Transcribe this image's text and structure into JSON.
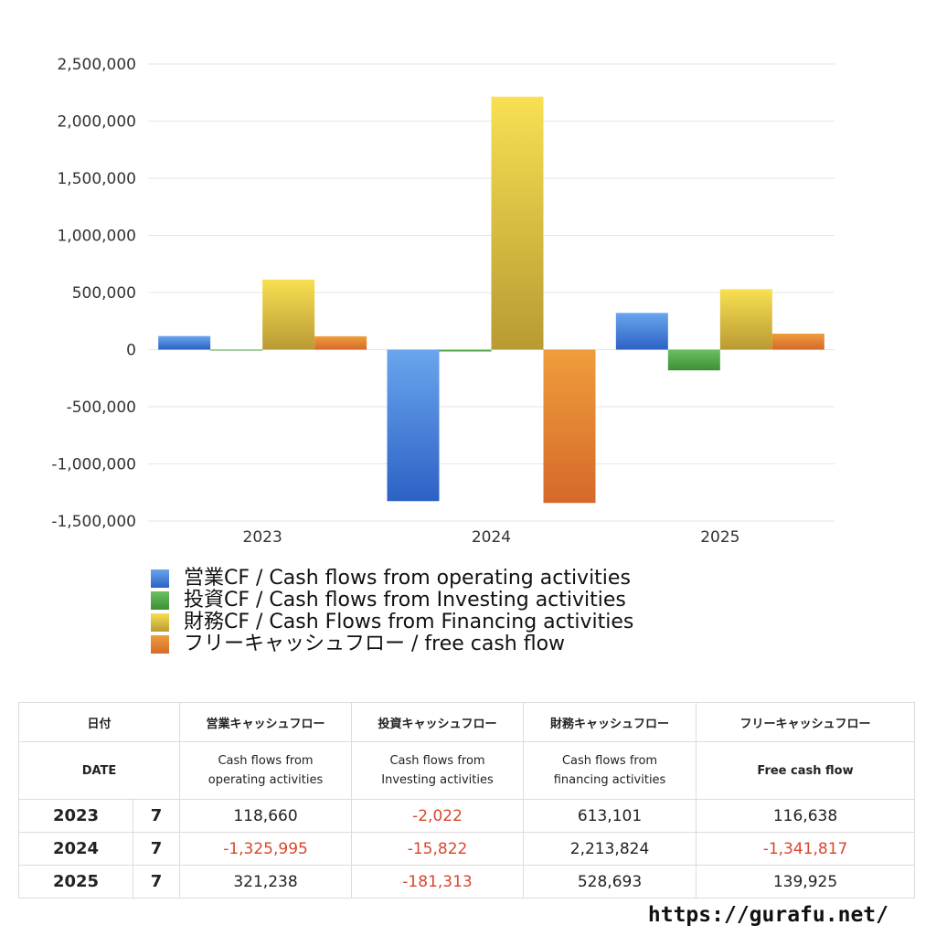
{
  "chart_data": {
    "type": "bar",
    "categories": [
      "2023",
      "2024",
      "2025"
    ],
    "series": [
      {
        "name": "営業CF / Cash flows from operating activities",
        "values": [
          118660,
          -1325995,
          321238
        ],
        "color_top": "#6aa5ee",
        "color_bottom": "#2c62c4"
      },
      {
        "name": "投資CF / Cash flows from Investing activities",
        "values": [
          -2022,
          -15822,
          -181313
        ],
        "color_top": "#6cc064",
        "color_bottom": "#3d8f34"
      },
      {
        "name": "財務CF / Cash Flows from Financing activities",
        "values": [
          613101,
          2213824,
          528693
        ],
        "color_top": "#f8e052",
        "color_bottom": "#b99a33"
      },
      {
        "name": "フリーキャッシュフロー / free cash flow",
        "values": [
          116638,
          -1341817,
          139925
        ],
        "color_top": "#ee9d3c",
        "color_bottom": "#d6692a"
      }
    ],
    "ylim": [
      -1500000,
      2500000
    ],
    "yticks": [
      2500000,
      2000000,
      1500000,
      1000000,
      500000,
      0,
      -500000,
      -1000000,
      -1500000
    ],
    "ytick_labels": [
      "2,500,000",
      "2,000,000",
      "1,500,000",
      "1,000,000",
      "500,000",
      "0",
      "-500,000",
      "-1,000,000",
      "-1,500,000"
    ],
    "grid": true,
    "legend_position": "bottom-left"
  },
  "table": {
    "header_jp": [
      "日付",
      "営業キャッシュフロー",
      "投資キャッシュフロー",
      "財務キャッシュフロー",
      "フリーキャッシュフロー"
    ],
    "header_en": [
      [
        "DATE"
      ],
      [
        "Cash flows from",
        "operating activities"
      ],
      [
        "Cash flows from",
        "Investing activities"
      ],
      [
        "Cash flows from",
        "financing activities"
      ],
      [
        "Free cash flow"
      ]
    ],
    "rows": [
      {
        "year": "2023",
        "month": "7",
        "values": [
          "118,660",
          "-2,022",
          "613,101",
          "116,638"
        ]
      },
      {
        "year": "2024",
        "month": "7",
        "values": [
          "-1,325,995",
          "-15,822",
          "2,213,824",
          "-1,341,817"
        ]
      },
      {
        "year": "2025",
        "month": "7",
        "values": [
          "321,238",
          "-181,313",
          "528,693",
          "139,925"
        ]
      }
    ]
  },
  "source_url": "https://gurafu.net/",
  "colors": {
    "negative": "#d9472b",
    "grid": "#e6e6e6"
  }
}
